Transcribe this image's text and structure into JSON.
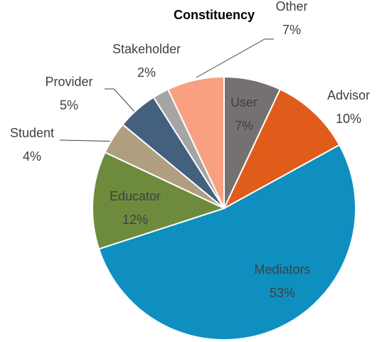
{
  "chart_data": {
    "type": "pie",
    "title": "Constituency",
    "categories": [
      "User",
      "Advisor",
      "Mediators",
      "Educator",
      "Student",
      "Provider",
      "Stakeholder",
      "Other"
    ],
    "values": [
      7,
      10,
      53,
      12,
      4,
      5,
      2,
      7
    ],
    "value_labels": [
      "7%",
      "10%",
      "53%",
      "12%",
      "4%",
      "5%",
      "2%",
      "7%"
    ],
    "colors": [
      "#767171",
      "#e05c1a",
      "#0f8fc0",
      "#6e8b3d",
      "#b09e80",
      "#44607f",
      "#a5a5a5",
      "#f8a080"
    ]
  }
}
